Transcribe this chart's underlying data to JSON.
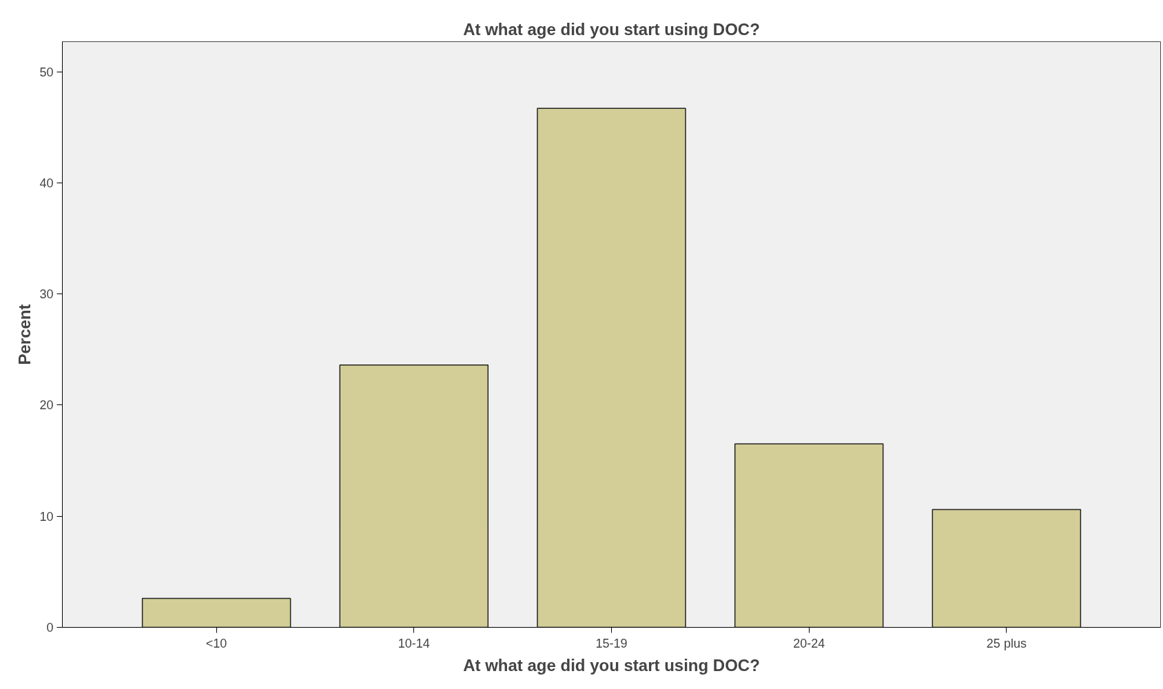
{
  "chart_data": {
    "type": "bar",
    "title": "At what age did you start using DOC?",
    "xlabel": "At what age did you start using DOC?",
    "ylabel": "Percent",
    "categories": [
      "<10",
      "10-14",
      "15-19",
      "20-24",
      "25 plus"
    ],
    "values": [
      2.6,
      23.6,
      46.7,
      16.5,
      10.6
    ],
    "color": "#d3ce97",
    "ylim": [
      0,
      52.7
    ],
    "yticks": [
      0,
      10,
      20,
      30,
      40,
      50
    ],
    "grid": false
  }
}
